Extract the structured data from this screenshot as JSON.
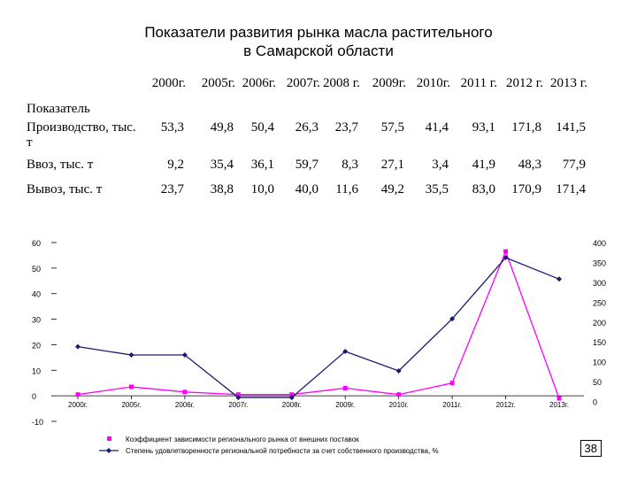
{
  "title_line1": "Показатели развития рынка масла растительного",
  "title_line2": "в Самарской области",
  "page_number": "38",
  "table": {
    "corner_label": "Показатель",
    "years": [
      "2000г.",
      "2005г.",
      "2006г.",
      "2007г.",
      "2008 г.",
      "2009г.",
      "2010г.",
      "2011 г.",
      "2012 г.",
      "2013 г."
    ],
    "rows": [
      {
        "label": "Производство, тыс. т",
        "values": [
          "53,3",
          "49,8",
          "50,4",
          "26,3",
          "23,7",
          "57,5",
          "41,4",
          "93,1",
          "171,8",
          "141,5"
        ]
      },
      {
        "label": "Ввоз, тыс. т",
        "values": [
          "9,2",
          "35,4",
          "36,1",
          "59,7",
          "8,3",
          "27,1",
          "3,4",
          "41,9",
          "48,3",
          "77,9"
        ]
      },
      {
        "label": "Вывоз, тыс. т",
        "values": [
          "23,7",
          "38,8",
          "10,0",
          "40,0",
          "11,6",
          "49,2",
          "35,5",
          "83,0",
          "170,9",
          "171,4"
        ]
      }
    ]
  },
  "chart_data": {
    "type": "line",
    "categories": [
      "2000г.",
      "2005г.",
      "2006г.",
      "2007г.",
      "2008г.",
      "2009г.",
      "2010г.",
      "2011г.",
      "2012г.",
      "2013г."
    ],
    "y_left": {
      "ticks": [
        "-10",
        "0",
        "10",
        "20",
        "30",
        "40",
        "50",
        "60"
      ],
      "ylim": [
        -10,
        60
      ]
    },
    "y_right": {
      "ticks": [
        "0",
        "50",
        "100",
        "150",
        "200",
        "250",
        "300",
        "350",
        "400"
      ],
      "ylim": [
        -50,
        400
      ]
    },
    "series": [
      {
        "name": "Коэффициент зависимости регионального рынка от внешних поставок",
        "axis": "left",
        "color": "#ff00ff",
        "marker": "square",
        "values": [
          0.5,
          3.5,
          1.5,
          0.5,
          0.5,
          3.0,
          0.5,
          5.0,
          56.5,
          -1.0
        ]
      },
      {
        "name": "Степень удовлетворенности региональной потребности за счет собственного производства, %",
        "axis": "right",
        "color": "#1a1a6e",
        "marker": "diamond",
        "values": [
          138,
          117,
          117,
          10,
          10,
          126,
          77,
          208,
          362,
          308
        ]
      }
    ],
    "legend_position": "bottom"
  }
}
